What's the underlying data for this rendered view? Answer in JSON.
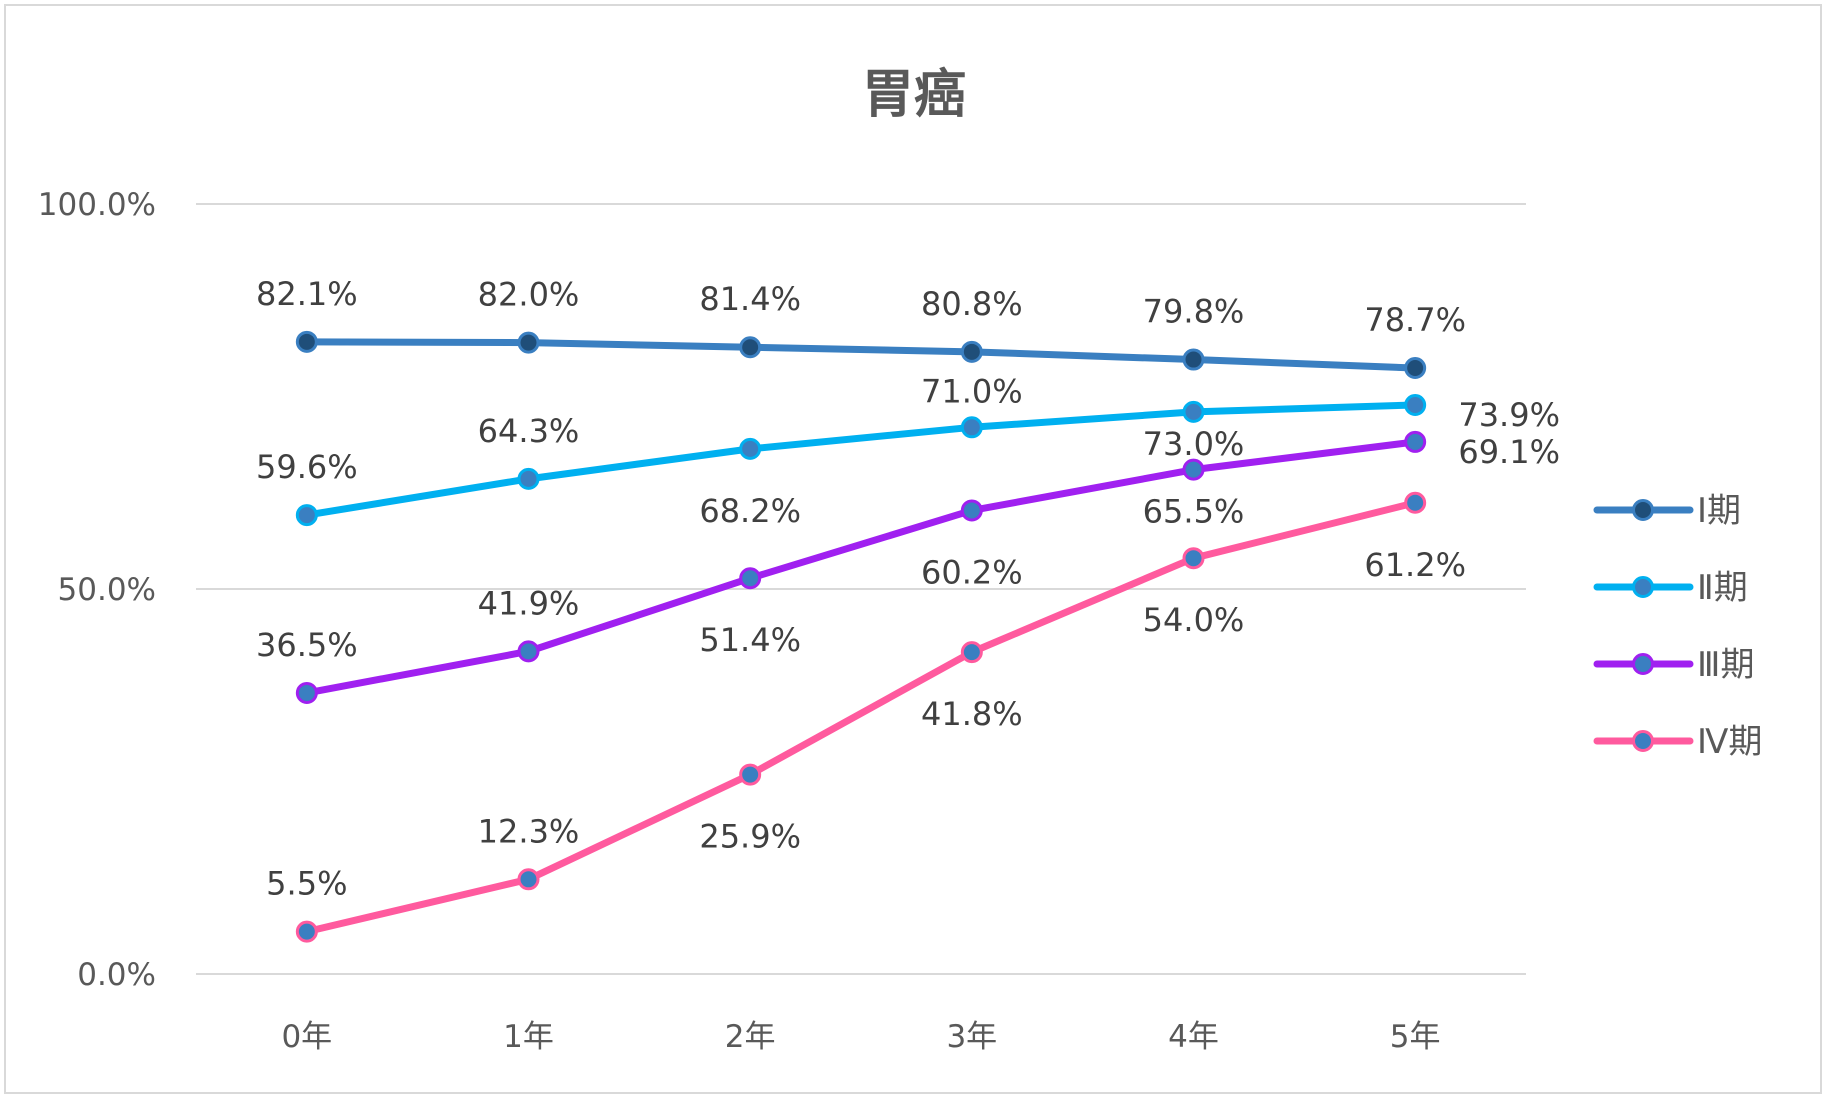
{
  "chart_data": {
    "type": "line",
    "title": "胃癌",
    "xlabel": "",
    "ylabel": "",
    "categories": [
      "0年",
      "1年",
      "2年",
      "3年",
      "4年",
      "5年"
    ],
    "y_ticks": [
      "0.0%",
      "50.0%",
      "100.0%"
    ],
    "ylim": [
      0,
      100
    ],
    "grid": true,
    "legend_position": "right",
    "series": [
      {
        "name": "Ⅰ期",
        "color": "#3a7fc1",
        "marker_color": "#1f4e79",
        "values": [
          82.1,
          82.0,
          81.4,
          80.8,
          79.8,
          78.7
        ],
        "labels": [
          "82.1%",
          "82.0%",
          "81.4%",
          "80.8%",
          "79.8%",
          "78.7%"
        ]
      },
      {
        "name": "Ⅱ期",
        "color": "#00b0f0",
        "marker_color": "#3a7fc1",
        "values": [
          59.6,
          64.3,
          68.2,
          71.0,
          73.0,
          73.9
        ],
        "labels": [
          "59.6%",
          "64.3%",
          "68.2%",
          "71.0%",
          "73.0%",
          "73.9%"
        ]
      },
      {
        "name": "Ⅲ期",
        "color": "#a020f0",
        "marker_color": "#3a7fc1",
        "values": [
          36.5,
          41.9,
          51.4,
          60.2,
          65.5,
          69.1
        ],
        "labels": [
          "36.5%",
          "41.9%",
          "51.4%",
          "60.2%",
          "65.5%",
          "69.1%"
        ]
      },
      {
        "name": "Ⅳ期",
        "color": "#ff5a9e",
        "marker_color": "#3a7fc1",
        "values": [
          5.5,
          12.3,
          25.9,
          41.8,
          54.0,
          61.2
        ],
        "labels": [
          "5.5%",
          "12.3%",
          "25.9%",
          "41.8%",
          "54.0%",
          "61.2%"
        ]
      }
    ]
  }
}
